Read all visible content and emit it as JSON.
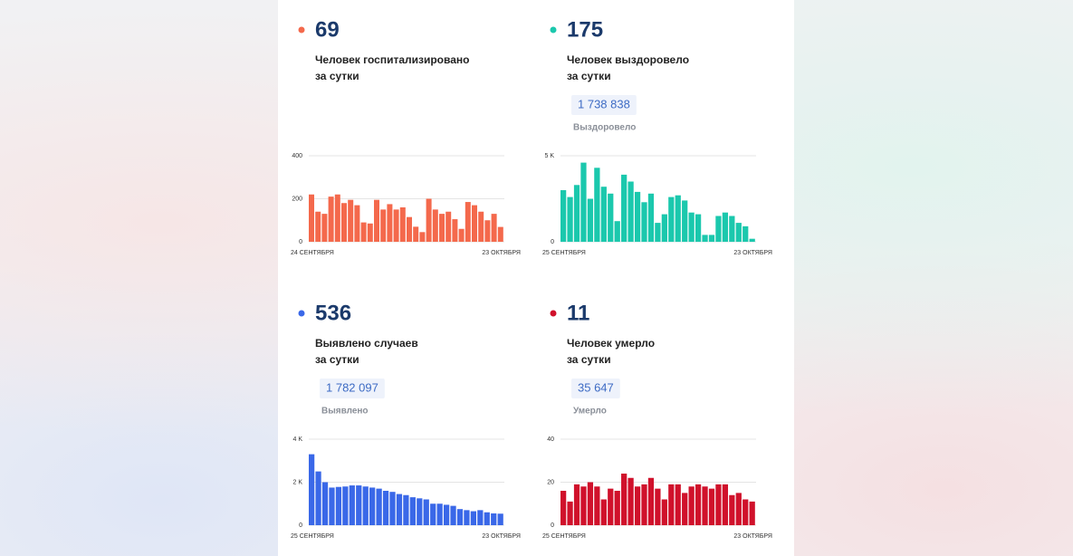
{
  "chart_data": [
    {
      "type": "bar",
      "title": "69",
      "color": "#f4694c",
      "subtitle_lines": [
        "Человек госпитализировано",
        "за сутки"
      ],
      "categories": [
        "24 СЕНТЯБРЯ",
        null,
        null,
        null,
        null,
        null,
        null,
        null,
        null,
        null,
        null,
        null,
        null,
        null,
        null,
        null,
        null,
        null,
        null,
        null,
        null,
        null,
        null,
        null,
        null,
        null,
        null,
        null,
        null,
        "23 ОКТЯБРЯ"
      ],
      "values": [
        220,
        140,
        130,
        210,
        220,
        180,
        195,
        170,
        90,
        85,
        195,
        150,
        175,
        150,
        160,
        115,
        70,
        45,
        200,
        150,
        130,
        140,
        105,
        60,
        185,
        170,
        140,
        100,
        130,
        69
      ],
      "ylim": [
        0,
        400
      ],
      "yticks": [
        0,
        200,
        400
      ],
      "grid": true
    },
    {
      "type": "bar",
      "title": "175",
      "color": "#1bc8ad",
      "subtitle_lines": [
        "Человек выздоровело",
        "за сутки"
      ],
      "total": "1 738 838",
      "total_caption": "Выздоровело",
      "categories": [
        "25 СЕНТЯБРЯ",
        null,
        null,
        null,
        null,
        null,
        null,
        null,
        null,
        null,
        null,
        null,
        null,
        null,
        null,
        null,
        null,
        null,
        null,
        null,
        null,
        null,
        null,
        null,
        null,
        null,
        null,
        null,
        "23 ОКТЯБРЯ"
      ],
      "values": [
        3000,
        2600,
        3300,
        4600,
        2500,
        4300,
        3200,
        2800,
        1200,
        3900,
        3500,
        2900,
        2300,
        2800,
        1100,
        1600,
        2600,
        2700,
        2400,
        1700,
        1600,
        400,
        400,
        1500,
        1700,
        1500,
        1100,
        900,
        175
      ],
      "ylim": [
        0,
        5000
      ],
      "yticks": [
        0,
        {
          "value": 5000,
          "label": "5 K"
        }
      ],
      "grid": true
    },
    {
      "type": "bar",
      "title": "536",
      "color": "#3a68e8",
      "subtitle_lines": [
        "Выявлено случаев",
        "за сутки"
      ],
      "total": "1 782 097",
      "total_caption": "Выявлено",
      "categories": [
        "25 СЕНТЯБРЯ",
        null,
        null,
        null,
        null,
        null,
        null,
        null,
        null,
        null,
        null,
        null,
        null,
        null,
        null,
        null,
        null,
        null,
        null,
        null,
        null,
        null,
        null,
        null,
        null,
        null,
        null,
        null,
        "23 ОКТЯБРЯ"
      ],
      "values": [
        3300,
        2500,
        2000,
        1750,
        1780,
        1800,
        1850,
        1850,
        1800,
        1750,
        1700,
        1600,
        1550,
        1450,
        1400,
        1300,
        1250,
        1200,
        1000,
        1000,
        950,
        900,
        750,
        700,
        650,
        700,
        600,
        550,
        536
      ],
      "ylim": [
        0,
        4000
      ],
      "yticks": [
        0,
        {
          "value": 2000,
          "label": "2 K"
        },
        {
          "value": 4000,
          "label": "4 K"
        }
      ],
      "grid": true
    },
    {
      "type": "bar",
      "title": "11",
      "color": "#d0112b",
      "subtitle_lines": [
        "Человек умерло",
        "за сутки"
      ],
      "total": "35 647",
      "total_caption": "Умерло",
      "categories": [
        "25 СЕНТЯБРЯ",
        null,
        null,
        null,
        null,
        null,
        null,
        null,
        null,
        null,
        null,
        null,
        null,
        null,
        null,
        null,
        null,
        null,
        null,
        null,
        null,
        null,
        null,
        null,
        null,
        null,
        null,
        null,
        "23 ОКТЯБРЯ"
      ],
      "values": [
        16,
        11,
        19,
        18,
        20,
        18,
        12,
        17,
        16,
        24,
        22,
        18,
        19,
        22,
        17,
        12,
        19,
        19,
        15,
        18,
        19,
        18,
        17,
        19,
        19,
        14,
        15,
        12,
        11
      ],
      "ylim": [
        0,
        40
      ],
      "yticks": [
        0,
        20,
        40
      ],
      "grid": true
    }
  ]
}
